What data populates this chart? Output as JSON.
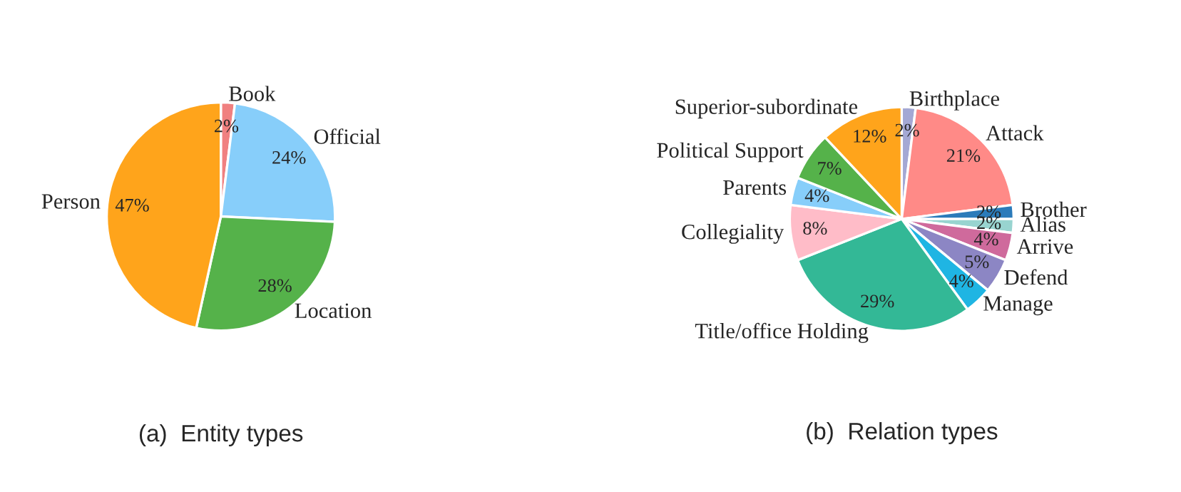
{
  "chart_data": [
    {
      "type": "pie",
      "title": "(a)  Entity types",
      "categories": [
        "Book",
        "Official",
        "Location",
        "Person"
      ],
      "values": [
        2,
        24,
        28,
        47
      ],
      "value_labels": [
        "2%",
        "24%",
        "28%",
        "47%"
      ],
      "colors": [
        "#f08080",
        "#87cefa",
        "#55b24a",
        "#ffa41b"
      ]
    },
    {
      "type": "pie",
      "title": "(b)  Relation types",
      "categories": [
        "Birthplace",
        "Attack",
        "Brother",
        "Alias",
        "Arrive",
        "Defend",
        "Manage",
        "Title/office Holding",
        "Collegiality",
        "Parents",
        "Political Support",
        "Superior-subordinate"
      ],
      "values": [
        2,
        21,
        2,
        2,
        4,
        5,
        4,
        29,
        8,
        4,
        7,
        12
      ],
      "value_labels": [
        "2%",
        "21%",
        "2%",
        "2%",
        "4%",
        "5%",
        "4%",
        "29%",
        "8%",
        "4%",
        "7%",
        "12%"
      ],
      "colors": [
        "#a4a8d4",
        "#ff8a87",
        "#2b7bba",
        "#98d4d0",
        "#cf6a9c",
        "#8c86c4",
        "#1fb5e3",
        "#33b896",
        "#ffbcc8",
        "#87cefa",
        "#55b24a",
        "#ffa41b"
      ]
    }
  ]
}
